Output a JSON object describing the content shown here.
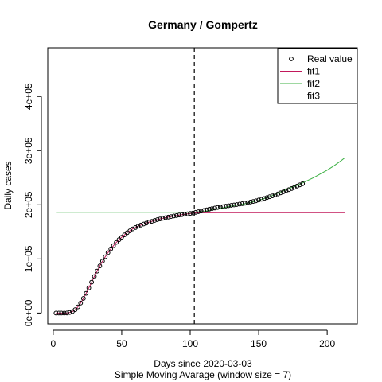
{
  "chart_data": {
    "type": "scatter",
    "title": "Germany / Gompertz",
    "xlabel": "Days since 2020-03-03",
    "xlabel2": "Simple Moving Avarage (window size = 7)",
    "ylabel": "Daily cases",
    "xlim": [
      -4,
      222
    ],
    "ylim": [
      -20000,
      490000
    ],
    "x_ticks": [
      0,
      50,
      100,
      150,
      200
    ],
    "x_tick_labels": [
      "0",
      "50",
      "100",
      "150",
      "200"
    ],
    "y_ticks": [
      0,
      100000,
      200000,
      300000,
      400000
    ],
    "y_tick_labels": [
      "0e+00",
      "1e+05",
      "2e+05",
      "3e+05",
      "4e+05"
    ],
    "vline_x": 103,
    "grid": false,
    "legend_position": "top-right",
    "legend": [
      {
        "label": "Real value",
        "kind": "point",
        "color": "#000000"
      },
      {
        "label": "fit1",
        "kind": "line",
        "color": "#c2185b"
      },
      {
        "label": "fit2",
        "kind": "line",
        "color": "#3cb043"
      },
      {
        "label": "fit3",
        "kind": "line",
        "color": "#1f5fbf"
      }
    ],
    "series": [
      {
        "name": "Real value",
        "x": [
          2,
          4,
          6,
          8,
          10,
          12,
          14,
          16,
          18,
          20,
          22,
          24,
          26,
          28,
          30,
          32,
          34,
          36,
          38,
          40,
          42,
          44,
          46,
          48,
          50,
          52,
          54,
          56,
          58,
          60,
          62,
          64,
          66,
          68,
          70,
          72,
          74,
          76,
          78,
          80,
          82,
          84,
          86,
          88,
          90,
          92,
          94,
          96,
          98,
          100,
          102,
          104,
          106,
          108,
          110,
          112,
          114,
          116,
          118,
          120,
          122,
          124,
          126,
          128,
          130,
          132,
          134,
          136,
          138,
          140,
          142,
          144,
          146,
          148,
          150,
          152,
          154,
          156,
          158,
          160,
          162,
          164,
          166,
          168,
          170,
          172,
          174,
          176,
          178,
          180,
          182
        ],
        "y": [
          0,
          0,
          0,
          0,
          200,
          1000,
          2800,
          6200,
          11500,
          18500,
          27000,
          36500,
          46500,
          57000,
          67500,
          77500,
          87000,
          96000,
          104000,
          111500,
          118500,
          124500,
          130500,
          135500,
          140000,
          144500,
          148500,
          152000,
          155500,
          158000,
          160500,
          162500,
          164500,
          166200,
          168000,
          169500,
          171000,
          172500,
          173800,
          175000,
          176200,
          177300,
          178300,
          179300,
          180100,
          181000,
          181800,
          182600,
          183300,
          184000,
          184800,
          186000,
          187200,
          188400,
          189600,
          190800,
          192000,
          193000,
          194000,
          195000,
          195900,
          196700,
          197500,
          198200,
          199000,
          199700,
          200500,
          201300,
          202100,
          203000,
          204000,
          205000,
          206200,
          207400,
          208800,
          210200,
          211600,
          213200,
          214800,
          216500,
          218300,
          220000,
          222000,
          224000,
          226000,
          228000,
          230000,
          232200,
          234500,
          236800,
          239000
        ]
      },
      {
        "name": "fit1",
        "x": [
          2,
          4,
          6,
          8,
          10,
          12,
          14,
          16,
          18,
          20,
          22,
          24,
          26,
          28,
          30,
          32,
          34,
          36,
          38,
          40,
          42,
          44,
          46,
          48,
          50,
          52,
          54,
          56,
          58,
          60,
          62,
          64,
          66,
          68,
          70,
          72,
          74,
          76,
          78,
          80,
          82,
          84,
          86,
          88,
          90,
          92,
          94,
          96,
          98,
          100,
          102,
          105,
          110,
          120,
          130,
          140,
          150,
          160,
          170,
          180,
          190,
          200,
          213
        ],
        "y": [
          0,
          0,
          0,
          0,
          200,
          1000,
          2800,
          6200,
          11500,
          18500,
          27000,
          36500,
          46500,
          57000,
          67500,
          77500,
          87000,
          96000,
          104000,
          111500,
          118500,
          124500,
          130500,
          135500,
          140000,
          144500,
          148500,
          152000,
          155500,
          158000,
          160500,
          162500,
          164500,
          166200,
          168000,
          169500,
          171000,
          172500,
          173800,
          175000,
          176200,
          177300,
          178300,
          179300,
          180100,
          181000,
          181800,
          182600,
          183300,
          184000,
          184500,
          185000,
          185200,
          185300,
          185300,
          185300,
          185300,
          185300,
          185300,
          185300,
          185300,
          185300,
          185300
        ]
      },
      {
        "name": "fit2",
        "x": [
          2,
          20,
          40,
          60,
          80,
          100,
          110,
          120,
          130,
          140,
          150,
          160,
          170,
          180,
          190,
          200,
          205,
          210,
          213
        ],
        "y": [
          186000,
          186000,
          186000,
          186000,
          186000,
          186200,
          187500,
          192500,
          197500,
          202000,
          208000,
          217000,
          228000,
          238000,
          250000,
          264000,
          272000,
          281000,
          287000
        ]
      }
    ]
  }
}
